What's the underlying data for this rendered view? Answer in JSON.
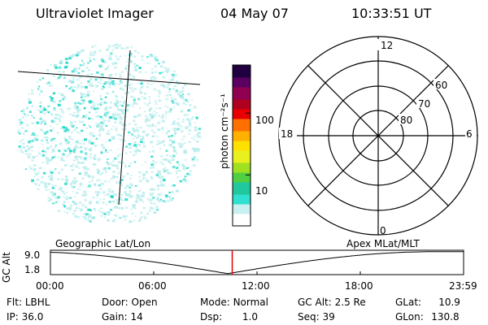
{
  "header": {
    "instrument": "Ultraviolet Imager",
    "date": "04 May 07",
    "time": "10:33:51 UT"
  },
  "colorbar": {
    "label": "photon cm⁻²s⁻¹",
    "ticks": [
      {
        "label": "100",
        "value": 100
      },
      {
        "label": "10",
        "value": 10
      }
    ],
    "range": [
      1.5,
      600
    ],
    "scale": "log",
    "colors": [
      "#ffffff",
      "#c8f0f0",
      "#30e0d0",
      "#20c8a0",
      "#50d040",
      "#a0e020",
      "#e8f020",
      "#ffe000",
      "#ffb000",
      "#ff7000",
      "#e80000",
      "#b00020",
      "#900050",
      "#5a0060",
      "#200040"
    ]
  },
  "image_panel": {
    "dot_color": "#20d8c8",
    "dot_color_faint": "#b8ecec"
  },
  "polar_plot": {
    "mlt_labels": [
      "12",
      "18",
      "6",
      "0"
    ],
    "mlat_labels": [
      "60",
      "70",
      "80"
    ]
  },
  "timeline": {
    "left_label": "Geographic Lat/Lon",
    "right_label": "Apex MLat/MLT",
    "y_axis_label": "GC Alt",
    "y_ticks": [
      "9.0",
      "1.8"
    ],
    "x_ticks": [
      "00:00",
      "06:00",
      "12:00",
      "18:00",
      "23:59"
    ],
    "marker_color": "#e00000",
    "marker_hour": 10.56
  },
  "info": {
    "row1": [
      {
        "label": "Flt:",
        "value": "LBHL"
      },
      {
        "label": "Door:",
        "value": "Open"
      },
      {
        "label": "Mode:",
        "value": "Normal"
      },
      {
        "label": "GC Alt:",
        "value": "2.5 Re"
      },
      {
        "label": "GLat:",
        "value": "10.9"
      }
    ],
    "row2": [
      {
        "label": "IP:",
        "value": "36.0"
      },
      {
        "label": "Gain:",
        "value": "14"
      },
      {
        "label": "Dsp:",
        "value": "1.0"
      },
      {
        "label": "Seq:",
        "value": "39"
      },
      {
        "label": "GLon:",
        "value": "130.8"
      }
    ]
  }
}
